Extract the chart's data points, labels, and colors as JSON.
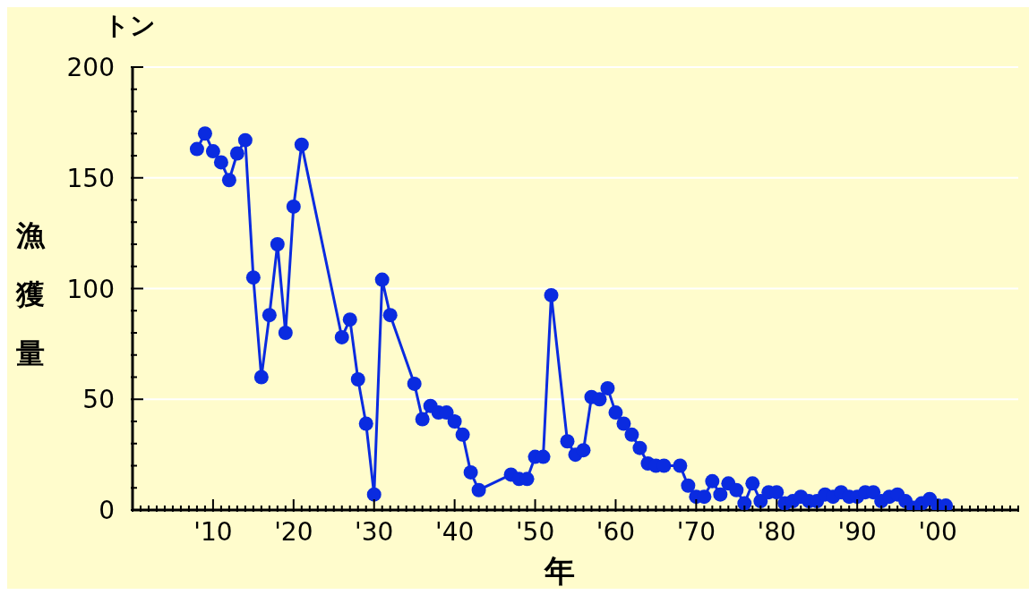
{
  "chart_data": {
    "type": "line",
    "xlabel": "年",
    "ylabel": "漁獲量",
    "annotations": [
      "トン"
    ],
    "x": [
      1908,
      1909,
      1910,
      1911,
      1912,
      1913,
      1914,
      1915,
      1916,
      1917,
      1918,
      1919,
      1920,
      1921,
      1926,
      1927,
      1928,
      1929,
      1930,
      1931,
      1932,
      1935,
      1936,
      1937,
      1938,
      1939,
      1940,
      1941,
      1942,
      1943,
      1947,
      1948,
      1949,
      1950,
      1951,
      1952,
      1954,
      1955,
      1956,
      1957,
      1958,
      1959,
      1960,
      1961,
      1962,
      1963,
      1964,
      1965,
      1966,
      1968,
      1969,
      1970,
      1971,
      1972,
      1973,
      1974,
      1975,
      1976,
      1977,
      1978,
      1979,
      1980,
      1981,
      1982,
      1983,
      1984,
      1985,
      1986,
      1987,
      1988,
      1989,
      1990,
      1991,
      1992,
      1993,
      1994,
      1995,
      1996,
      1997,
      1998,
      1999,
      2000,
      2001
    ],
    "series": [
      {
        "color": "#0a2be0",
        "values": [
          163,
          170,
          162,
          157,
          149,
          161,
          167,
          105,
          60,
          88,
          120,
          80,
          137,
          165,
          78,
          86,
          59,
          39,
          7,
          104,
          88,
          57,
          41,
          47,
          44,
          44,
          40,
          34,
          17,
          9,
          16,
          14,
          14,
          24,
          24,
          97,
          31,
          25,
          27,
          51,
          50,
          55,
          44,
          39,
          34,
          28,
          21,
          20,
          20,
          20,
          11,
          6,
          6,
          13,
          7,
          12,
          9,
          3,
          12,
          4,
          8,
          8,
          3,
          4,
          6,
          4,
          4,
          7,
          6,
          8,
          6,
          6,
          8,
          8,
          4,
          6,
          7,
          4,
          1,
          3,
          5,
          2,
          2
        ]
      }
    ],
    "xlim": [
      1900,
      2010
    ],
    "xticks": [
      {
        "value": 1900,
        "label": null
      },
      {
        "value": 1901,
        "label": null
      },
      {
        "value": 1902,
        "label": null
      },
      {
        "value": 1903,
        "label": null
      },
      {
        "value": 1904,
        "label": null
      },
      {
        "value": 1905,
        "label": null
      },
      {
        "value": 1906,
        "label": null
      },
      {
        "value": 1907,
        "label": null
      },
      {
        "value": 1908,
        "label": null
      },
      {
        "value": 1909,
        "label": null
      },
      {
        "value": 1910,
        "label": "'10"
      },
      {
        "value": 1911,
        "label": null
      },
      {
        "value": 1912,
        "label": null
      },
      {
        "value": 1913,
        "label": null
      },
      {
        "value": 1914,
        "label": null
      },
      {
        "value": 1915,
        "label": null
      },
      {
        "value": 1916,
        "label": null
      },
      {
        "value": 1917,
        "label": null
      },
      {
        "value": 1918,
        "label": null
      },
      {
        "value": 1919,
        "label": null
      },
      {
        "value": 1920,
        "label": "'20"
      },
      {
        "value": 1921,
        "label": null
      },
      {
        "value": 1922,
        "label": null
      },
      {
        "value": 1923,
        "label": null
      },
      {
        "value": 1924,
        "label": null
      },
      {
        "value": 1925,
        "label": null
      },
      {
        "value": 1926,
        "label": null
      },
      {
        "value": 1927,
        "label": null
      },
      {
        "value": 1928,
        "label": null
      },
      {
        "value": 1929,
        "label": null
      },
      {
        "value": 1930,
        "label": "'30"
      },
      {
        "value": 1931,
        "label": null
      },
      {
        "value": 1932,
        "label": null
      },
      {
        "value": 1933,
        "label": null
      },
      {
        "value": 1934,
        "label": null
      },
      {
        "value": 1935,
        "label": null
      },
      {
        "value": 1936,
        "label": null
      },
      {
        "value": 1937,
        "label": null
      },
      {
        "value": 1938,
        "label": null
      },
      {
        "value": 1939,
        "label": null
      },
      {
        "value": 1940,
        "label": "'40"
      },
      {
        "value": 1941,
        "label": null
      },
      {
        "value": 1942,
        "label": null
      },
      {
        "value": 1943,
        "label": null
      },
      {
        "value": 1944,
        "label": null
      },
      {
        "value": 1945,
        "label": null
      },
      {
        "value": 1946,
        "label": null
      },
      {
        "value": 1947,
        "label": null
      },
      {
        "value": 1948,
        "label": null
      },
      {
        "value": 1949,
        "label": null
      },
      {
        "value": 1950,
        "label": "'50"
      },
      {
        "value": 1951,
        "label": null
      },
      {
        "value": 1952,
        "label": null
      },
      {
        "value": 1953,
        "label": null
      },
      {
        "value": 1954,
        "label": null
      },
      {
        "value": 1955,
        "label": null
      },
      {
        "value": 1956,
        "label": null
      },
      {
        "value": 1957,
        "label": null
      },
      {
        "value": 1958,
        "label": null
      },
      {
        "value": 1959,
        "label": null
      },
      {
        "value": 1960,
        "label": "'60"
      },
      {
        "value": 1961,
        "label": null
      },
      {
        "value": 1962,
        "label": null
      },
      {
        "value": 1963,
        "label": null
      },
      {
        "value": 1964,
        "label": null
      },
      {
        "value": 1965,
        "label": null
      },
      {
        "value": 1966,
        "label": null
      },
      {
        "value": 1967,
        "label": null
      },
      {
        "value": 1968,
        "label": null
      },
      {
        "value": 1969,
        "label": null
      },
      {
        "value": 1970,
        "label": "'70"
      },
      {
        "value": 1971,
        "label": null
      },
      {
        "value": 1972,
        "label": null
      },
      {
        "value": 1973,
        "label": null
      },
      {
        "value": 1974,
        "label": null
      },
      {
        "value": 1975,
        "label": null
      },
      {
        "value": 1976,
        "label": null
      },
      {
        "value": 1977,
        "label": null
      },
      {
        "value": 1978,
        "label": null
      },
      {
        "value": 1979,
        "label": null
      },
      {
        "value": 1980,
        "label": "'80"
      },
      {
        "value": 1981,
        "label": null
      },
      {
        "value": 1982,
        "label": null
      },
      {
        "value": 1983,
        "label": null
      },
      {
        "value": 1984,
        "label": null
      },
      {
        "value": 1985,
        "label": null
      },
      {
        "value": 1986,
        "label": null
      },
      {
        "value": 1987,
        "label": null
      },
      {
        "value": 1988,
        "label": null
      },
      {
        "value": 1989,
        "label": null
      },
      {
        "value": 1990,
        "label": "'90"
      },
      {
        "value": 1991,
        "label": null
      },
      {
        "value": 1992,
        "label": null
      },
      {
        "value": 1993,
        "label": null
      },
      {
        "value": 1994,
        "label": null
      },
      {
        "value": 1995,
        "label": null
      },
      {
        "value": 1996,
        "label": null
      },
      {
        "value": 1997,
        "label": null
      },
      {
        "value": 1998,
        "label": null
      },
      {
        "value": 1999,
        "label": null
      },
      {
        "value": 2000,
        "label": "'00"
      },
      {
        "value": 2001,
        "label": null
      },
      {
        "value": 2002,
        "label": null
      },
      {
        "value": 2003,
        "label": null
      },
      {
        "value": 2004,
        "label": null
      },
      {
        "value": 2005,
        "label": null
      },
      {
        "value": 2006,
        "label": null
      },
      {
        "value": 2007,
        "label": null
      },
      {
        "value": 2008,
        "label": null
      },
      {
        "value": 2009,
        "label": null
      },
      {
        "value": 2010,
        "label": null
      }
    ],
    "ylim": [
      0,
      200
    ],
    "yticks": [
      0,
      {
        "value": 10,
        "label": null
      },
      {
        "value": 20,
        "label": null
      },
      {
        "value": 30,
        "label": null
      },
      {
        "value": 40,
        "label": null
      },
      50,
      {
        "value": 60,
        "label": null
      },
      {
        "value": 70,
        "label": null
      },
      {
        "value": 80,
        "label": null
      },
      {
        "value": 90,
        "label": null
      },
      100,
      {
        "value": 110,
        "label": null
      },
      {
        "value": 120,
        "label": null
      },
      {
        "value": 130,
        "label": null
      },
      {
        "value": 140,
        "label": null
      },
      150,
      {
        "value": 160,
        "label": null
      },
      {
        "value": 170,
        "label": null
      },
      {
        "value": 180,
        "label": null
      },
      {
        "value": 190,
        "label": null
      },
      200
    ],
    "grid": "y",
    "legend": false,
    "marker": "circle",
    "line_style": "solid"
  }
}
